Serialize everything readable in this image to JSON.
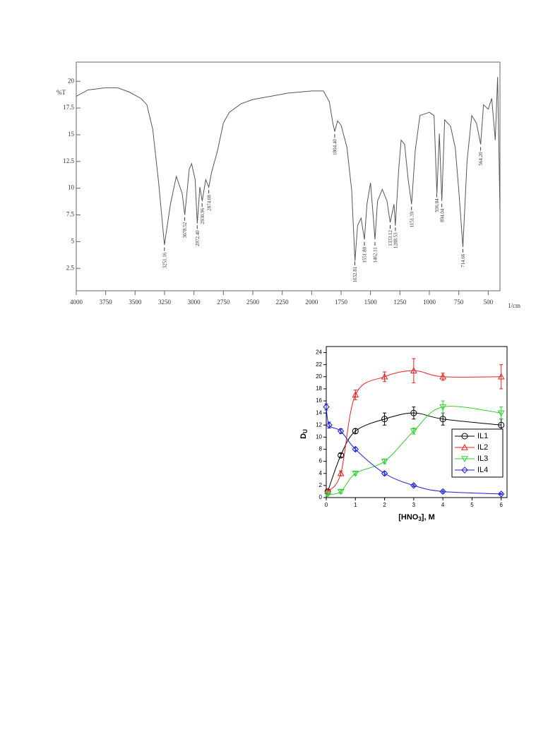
{
  "chart_data": [
    {
      "type": "line",
      "y_label": "%T",
      "x_unit": "1/cm",
      "xlim": [
        4000,
        400
      ],
      "ylim": [
        0.4,
        21.8
      ],
      "xticks": [
        4000,
        3750,
        3500,
        3250,
        3000,
        2750,
        2500,
        2250,
        2000,
        1750,
        1500,
        1250,
        1000,
        750,
        500
      ],
      "yticks": [
        2.5,
        5,
        7.5,
        10,
        12.5,
        15,
        17.5,
        20
      ],
      "series": [
        {
          "color": "#555555",
          "x": [
            4000,
            3900,
            3750,
            3650,
            3550,
            3450,
            3400,
            3350,
            3300,
            3251,
            3200,
            3150,
            3100,
            3078,
            3040,
            3020,
            2990,
            2972,
            2950,
            2930,
            2900,
            2874,
            2850,
            2800,
            2750,
            2700,
            2600,
            2500,
            2350,
            2200,
            2000,
            1900,
            1850,
            1820,
            1804,
            1780,
            1750,
            1700,
            1660,
            1632,
            1610,
            1580,
            1552,
            1530,
            1500,
            1480,
            1462,
            1440,
            1400,
            1360,
            1333,
            1300,
            1289,
            1260,
            1240,
            1210,
            1180,
            1151,
            1120,
            1080,
            1000,
            960,
            936,
            915,
            894,
            870,
            820,
            780,
            750,
            715,
            680,
            640,
            600,
            564,
            540,
            500,
            470,
            440,
            420,
            400
          ],
          "values": [
            18.6,
            19.2,
            19.4,
            19.4,
            19.0,
            18.4,
            17.8,
            15.5,
            10.5,
            4.7,
            8.5,
            11.1,
            9.5,
            7.5,
            11.8,
            12.3,
            10.8,
            6.7,
            10.1,
            8.8,
            10.8,
            10.1,
            11.5,
            13.5,
            16.1,
            17.1,
            17.9,
            18.3,
            18.6,
            18.9,
            19.1,
            19.1,
            18.1,
            16.1,
            15.3,
            16.3,
            15.9,
            13.8,
            9.8,
            3.2,
            6.5,
            7.2,
            5.2,
            8.5,
            10.5,
            7.8,
            5.2,
            8.8,
            9.9,
            8.8,
            6.8,
            8.5,
            6.5,
            11.8,
            14.5,
            14.1,
            10.8,
            8.5,
            13.5,
            16.8,
            17.1,
            16.8,
            9.5,
            15.1,
            8.8,
            16.4,
            15.8,
            13.8,
            9.8,
            4.5,
            12.5,
            16.8,
            16.1,
            14.1,
            17.8,
            17.4,
            18.4,
            14.5,
            20.4,
            7.8
          ]
        }
      ],
      "peaks": [
        {
          "x": 3251.16,
          "label": "3251.16"
        },
        {
          "x": 3078.52,
          "label": "3078.52"
        },
        {
          "x": 2972.4,
          "label": "2972.40"
        },
        {
          "x": 2930.96,
          "label": "2930.96"
        },
        {
          "x": 2874.08,
          "label": "2874.08"
        },
        {
          "x": 1804.4,
          "label": "1804.40"
        },
        {
          "x": 1632.81,
          "label": "1632.81"
        },
        {
          "x": 1551.8,
          "label": "1551.80"
        },
        {
          "x": 1462.11,
          "label": "1462.11"
        },
        {
          "x": 1333.12,
          "label": "1333.12"
        },
        {
          "x": 1288.53,
          "label": "1288.53"
        },
        {
          "x": 1151.39,
          "label": "1151.39"
        },
        {
          "x": 936.84,
          "label": "936.84"
        },
        {
          "x": 894.04,
          "label": "894.04"
        },
        {
          "x": 714.66,
          "label": "714.66"
        },
        {
          "x": 564.2,
          "label": "564.20"
        }
      ]
    },
    {
      "type": "scatter",
      "y_label": {
        "main": "D",
        "sub": "U"
      },
      "x_label": {
        "parts": [
          "[HNO",
          "3",
          "], M"
        ]
      },
      "xlim": [
        0,
        6.2
      ],
      "ylim": [
        0,
        25
      ],
      "xticks": [
        0,
        1,
        2,
        3,
        4,
        5,
        6
      ],
      "yticks": [
        0,
        2,
        4,
        6,
        8,
        10,
        12,
        14,
        16,
        18,
        20,
        22,
        24
      ],
      "legend": "center right",
      "series": [
        {
          "name": "IL1",
          "color": "#000000",
          "marker": "circle",
          "x": [
            0.05,
            0.5,
            1,
            2,
            3,
            4,
            6
          ],
          "values": [
            1,
            7,
            11,
            13,
            14,
            13,
            12
          ],
          "errors": [
            0.3,
            0.3,
            0.4,
            1,
            1,
            1,
            1
          ]
        },
        {
          "name": "IL2",
          "color": "#e8201c",
          "marker": "triangle-up",
          "x": [
            0.05,
            0.5,
            1,
            2,
            3,
            4,
            6
          ],
          "values": [
            1,
            4,
            17,
            20,
            21,
            20,
            20
          ],
          "errors": [
            0.3,
            0.4,
            0.8,
            0.8,
            2,
            0.6,
            2
          ]
        },
        {
          "name": "IL3",
          "color": "#2ed12e",
          "marker": "triangle-down",
          "x": [
            0.05,
            0.5,
            1,
            2,
            3,
            4,
            6
          ],
          "values": [
            0.5,
            1,
            4,
            6,
            11,
            15,
            14
          ],
          "errors": [
            0.2,
            0.3,
            0.3,
            0.4,
            0.5,
            1,
            1
          ]
        },
        {
          "name": "IL4",
          "color": "#1c1ce0",
          "marker": "diamond",
          "x": [
            0,
            0.1,
            0.5,
            1,
            2,
            3,
            4,
            6
          ],
          "values": [
            15,
            12,
            11,
            8,
            4,
            2,
            1,
            0.6
          ],
          "errors": [
            0.5,
            0.5,
            0.4,
            0.3,
            0.3,
            0.2,
            0.2,
            0.1
          ]
        }
      ]
    }
  ]
}
